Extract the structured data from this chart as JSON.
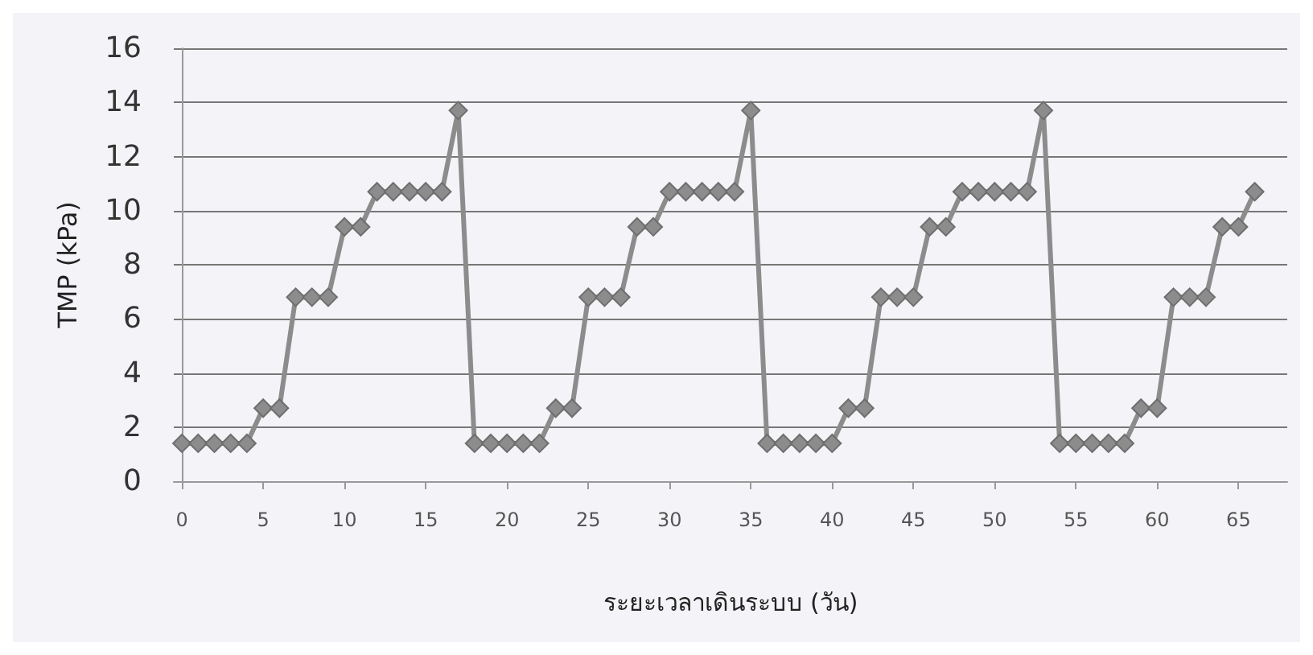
{
  "chart_data": {
    "type": "line",
    "xlabel": "ระยะเวลาเดินระบบ (วัน)",
    "ylabel": "TMP (kPa)",
    "x": [
      0,
      1,
      2,
      3,
      4,
      5,
      6,
      7,
      8,
      9,
      10,
      11,
      12,
      13,
      14,
      15,
      16,
      17,
      18,
      19,
      20,
      21,
      22,
      23,
      24,
      25,
      26,
      27,
      28,
      29,
      30,
      31,
      32,
      33,
      34,
      35,
      36,
      37,
      38,
      39,
      40,
      41,
      42,
      43,
      44,
      45,
      46,
      47,
      48,
      49,
      50,
      51,
      52,
      53,
      54,
      55,
      56,
      57,
      58,
      59,
      60,
      61,
      62,
      63,
      64,
      65,
      66
    ],
    "series": [
      {
        "color": "#8c8c8c",
        "values": [
          1.4,
          1.4,
          1.4,
          1.4,
          1.4,
          2.7,
          2.7,
          6.8,
          6.8,
          6.8,
          9.4,
          9.4,
          10.7,
          10.7,
          10.7,
          10.7,
          10.7,
          13.7,
          1.4,
          1.4,
          1.4,
          1.4,
          1.4,
          2.7,
          2.7,
          6.8,
          6.8,
          6.8,
          9.4,
          9.4,
          10.7,
          10.7,
          10.7,
          10.7,
          10.7,
          13.7,
          1.4,
          1.4,
          1.4,
          1.4,
          1.4,
          2.7,
          2.7,
          6.8,
          6.8,
          6.8,
          9.4,
          9.4,
          10.7,
          10.7,
          10.7,
          10.7,
          10.7,
          13.7,
          1.4,
          1.4,
          1.4,
          1.4,
          1.4,
          2.7,
          2.7,
          6.8,
          6.8,
          6.8,
          9.4,
          9.4,
          10.7
        ]
      }
    ],
    "xlim": [
      -0.5,
      68
    ],
    "xticks": [
      0,
      5,
      10,
      15,
      20,
      25,
      30,
      35,
      40,
      45,
      50,
      55,
      60,
      65
    ],
    "ylim": [
      0,
      16
    ],
    "yticks": [
      0,
      2,
      4,
      6,
      8,
      10,
      12,
      14,
      16
    ],
    "grid": "y",
    "marker": "diamond",
    "line_style": "solid"
  }
}
